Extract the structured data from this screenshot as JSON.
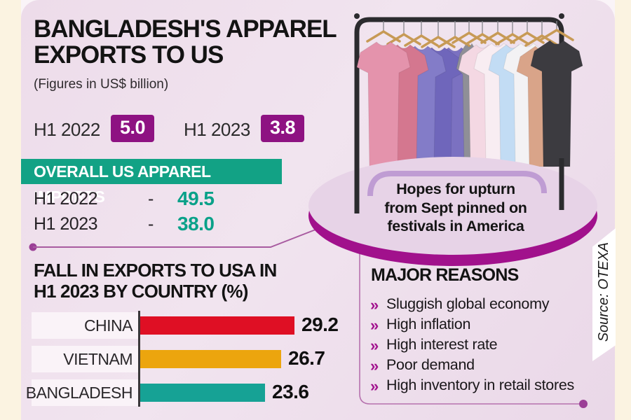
{
  "theme": {
    "panel_bg": "#eddcea",
    "edge_bg": "#fbf3e1",
    "accent_purple": "#8e1282",
    "accent_teal": "#12a285",
    "teal_value_color": "#0aa189",
    "ellipse_fill": "#e7d3e7",
    "ellipse_rim": "#a1118c",
    "bullet_color": "#a2138e",
    "connector_color": "#a85ba0"
  },
  "header": {
    "title_line1": "BANGLADESH'S APPAREL",
    "title_line2": "EXPORTS TO US",
    "subtitle": "(Figures in US$ billion)",
    "stats": [
      {
        "label": "H1 2022",
        "value": "5.0"
      },
      {
        "label": "H1 2023",
        "value": "3.8"
      }
    ]
  },
  "imports": {
    "title": "OVERALL US APPAREL IMPORTS",
    "rows": [
      {
        "label": "H1 2022",
        "dash": "-",
        "value": "49.5"
      },
      {
        "label": "H1 2023",
        "dash": "-",
        "value": "38.0"
      }
    ]
  },
  "chart_heading": {
    "line1": "FALL IN EXPORTS TO USA IN",
    "line2": "H1 2023 BY COUNTRY (%)"
  },
  "chart_data": {
    "type": "bar",
    "orientation": "horizontal",
    "title": "FALL IN EXPORTS TO USA IN H1 2023 BY COUNTRY (%)",
    "unit": "%",
    "categories": [
      "CHINA",
      "VIETNAM",
      "BANGLADESH"
    ],
    "values": [
      29.2,
      26.7,
      23.6
    ],
    "value_labels": [
      "29.2",
      "26.7",
      "23.6"
    ],
    "colors": [
      "#df0f24",
      "#eca50e",
      "#16a295"
    ],
    "xlim": [
      0,
      30
    ],
    "grid": false,
    "legend": false
  },
  "callout": {
    "line1": "Hopes for upturn",
    "line2": "from Sept pinned on",
    "line3": "festivals in America"
  },
  "reasons": {
    "title": "MAJOR REASONS",
    "bullet_glyph": "»",
    "items": [
      "Sluggish global economy",
      "High inflation",
      "High interest rate",
      "Poor demand",
      "High inventory in retail stores"
    ]
  },
  "source": {
    "text": "Source: OTEXA"
  },
  "rack": {
    "frame_color": "#2b2b2e",
    "hanger_color": "#c79a55",
    "shirt_colors": [
      "#e493ac",
      "#d4778f",
      "#837cc8",
      "#6f66bb",
      "#7b71c1",
      "#8f8f97",
      "#f4d8e3",
      "#f8edf2",
      "#c2dcf4",
      "#f3f2f4",
      "#d9a489",
      "#3c3b40"
    ]
  }
}
